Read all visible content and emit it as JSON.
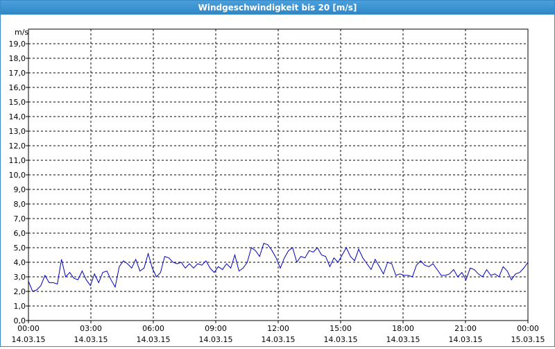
{
  "window": {
    "title": "Windgeschwindigkeit bis 20 [m/s]"
  },
  "chart_data": {
    "type": "line",
    "title": "Windgeschwindigkeit bis 20 [m/s]",
    "ylabel": "m/s",
    "xlabel": "",
    "ylim": [
      0,
      20
    ],
    "xlim_hours": [
      0,
      24
    ],
    "grid": true,
    "colors": {
      "series": "#0000c0",
      "grid": "#000000",
      "background": "#ffffff"
    },
    "y_ticks": [
      "0,0",
      "1,0",
      "2,0",
      "3,0",
      "4,0",
      "5,0",
      "6,0",
      "7,0",
      "8,0",
      "9,0",
      "10,0",
      "11,0",
      "12,0",
      "13,0",
      "14,0",
      "15,0",
      "16,0",
      "17,0",
      "18,0",
      "19,0"
    ],
    "x_ticks": [
      {
        "time": "00:00",
        "date": "14.03.15"
      },
      {
        "time": "03:00",
        "date": "14.03.15"
      },
      {
        "time": "06:00",
        "date": "14.03.15"
      },
      {
        "time": "09:00",
        "date": "14.03.15"
      },
      {
        "time": "12:00",
        "date": "14.03.15"
      },
      {
        "time": "15:00",
        "date": "14.03.15"
      },
      {
        "time": "18:00",
        "date": "14.03.15"
      },
      {
        "time": "21:00",
        "date": "14.03.15"
      },
      {
        "time": "00:00",
        "date": "15.03.15"
      }
    ],
    "series": [
      {
        "values": [
          2.7,
          2.0,
          2.1,
          2.4,
          3.1,
          2.6,
          2.6,
          2.5,
          4.2,
          3.0,
          3.3,
          2.9,
          2.8,
          3.4,
          2.8,
          2.4,
          3.2,
          2.6,
          3.3,
          3.4,
          2.8,
          2.3,
          3.7,
          4.1,
          3.9,
          3.6,
          4.2,
          3.4,
          3.6,
          4.6,
          3.6,
          3.0,
          3.3,
          4.4,
          4.3,
          4.0,
          3.9,
          4.0,
          3.6,
          3.9,
          3.6,
          3.9,
          3.8,
          4.1,
          3.6,
          3.3,
          3.7,
          3.5,
          3.9,
          3.6,
          4.5,
          3.4,
          3.6,
          4.0,
          5.0,
          4.8,
          4.4,
          5.3,
          5.2,
          4.8,
          4.3,
          3.6,
          4.3,
          4.8,
          5.0,
          4.0,
          4.4,
          4.3,
          4.8,
          4.7,
          5.0,
          4.5,
          4.4,
          3.7,
          4.3,
          4.0,
          4.5,
          5.0,
          4.4,
          4.1,
          4.9,
          4.3,
          3.9,
          3.5,
          4.2,
          3.7,
          3.2,
          4.0,
          3.9,
          3.1,
          3.2,
          3.1,
          3.1,
          3.0,
          3.8,
          4.1,
          3.8,
          3.7,
          3.9,
          3.5,
          3.1,
          3.1,
          3.2,
          3.5,
          3.0,
          3.3,
          2.8,
          3.6,
          3.5,
          3.2,
          3.0,
          3.5,
          3.1,
          3.2,
          3.0,
          3.7,
          3.4,
          2.8,
          3.2,
          3.3,
          3.6,
          4.0
        ]
      }
    ]
  }
}
